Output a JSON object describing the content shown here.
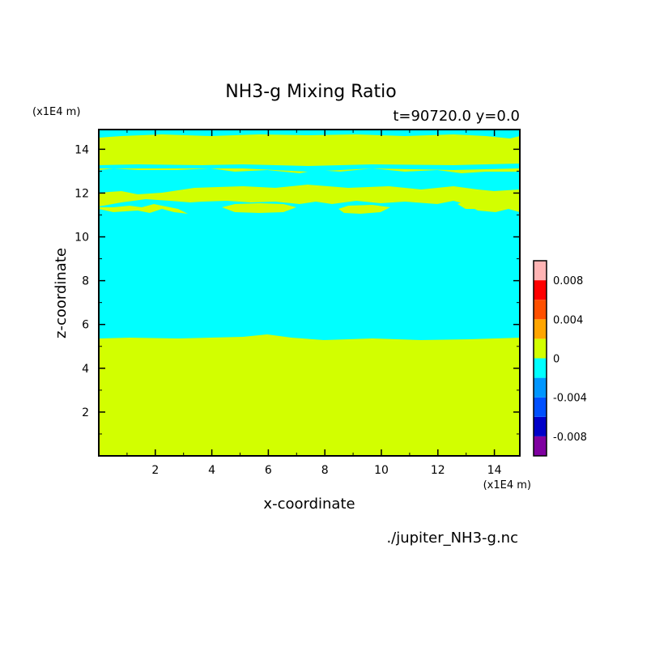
{
  "chart_data": {
    "type": "heatmap",
    "title": "NH3-g Mixing Ratio",
    "subtitle": "t=90720.0 y=0.0",
    "xlabel": "x-coordinate",
    "ylabel": "z-coordinate",
    "x_unit": "(x1E4 m)",
    "y_unit": "(x1E4 m)",
    "source_label": "./jupiter_NH3-g.nc",
    "xlim": [
      0,
      14.9
    ],
    "ylim": [
      0,
      14.9
    ],
    "x_ticks": [
      2,
      4,
      6,
      8,
      10,
      12,
      14
    ],
    "y_ticks": [
      2,
      4,
      6,
      8,
      10,
      12,
      14
    ],
    "x_tick_labels": [
      "2",
      "4",
      "6",
      "8",
      "10",
      "12",
      "14"
    ],
    "y_tick_labels": [
      "2",
      "4",
      "6",
      "8",
      "10",
      "12",
      "14"
    ],
    "colorbar": {
      "levels": [
        -0.01,
        -0.008,
        -0.006,
        -0.004,
        -0.002,
        0,
        0.002,
        0.004,
        0.006,
        0.008,
        0.01
      ],
      "colors": [
        "#7f00a0",
        "#0000c8",
        "#0050ff",
        "#0096ff",
        "#00ffff",
        "#d2ff00",
        "#ffa500",
        "#ff5000",
        "#ff0000",
        "#ffb4b4"
      ],
      "tick_labels": [
        "-0.008",
        "-0.004",
        "0",
        "0.004",
        "0.008"
      ],
      "tick_values": [
        -0.008,
        -0.004,
        0,
        0.004,
        0.008
      ]
    },
    "field_regions": [
      {
        "value_band": "0 to 0.002",
        "color": "#d2ff00",
        "z_range": [
          0,
          5.45
        ],
        "description": "lower layer"
      },
      {
        "value_band": "-0.002 to 0",
        "color": "#00ffff",
        "z_range": [
          5.45,
          11.2
        ],
        "description": "middle layer"
      },
      {
        "value_band": "0 to 0.002",
        "color": "#d2ff00",
        "z_range": [
          11.1,
          12.2
        ],
        "description": "patchy layer"
      },
      {
        "value_band": "-0.002 to 0",
        "color": "#00ffff",
        "z_range": [
          12.2,
          13.4
        ],
        "description": "band"
      },
      {
        "value_band": "0 to 0.002",
        "color": "#d2ff00",
        "z_range": [
          13.4,
          14.7
        ],
        "description": "upper layer"
      },
      {
        "value_band": "-0.002 to 0",
        "color": "#00ffff",
        "z_range": [
          14.7,
          14.9
        ],
        "description": "top band"
      }
    ]
  }
}
